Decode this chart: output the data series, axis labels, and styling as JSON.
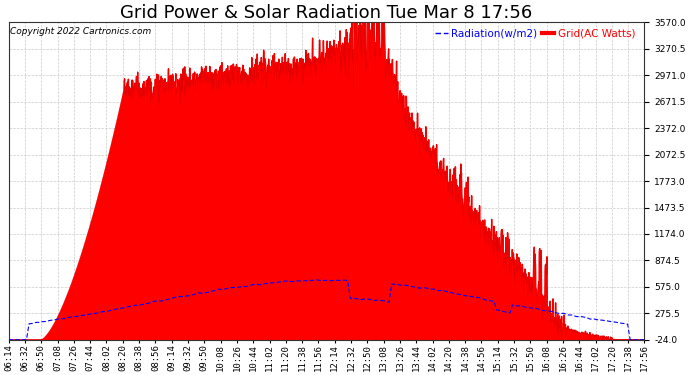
{
  "title": "Grid Power & Solar Radiation Tue Mar 8 17:56",
  "copyright": "Copyright 2022 Cartronics.com",
  "legend_radiation": "Radiation(w/m2)",
  "legend_grid": "Grid(AC Watts)",
  "grid_color": "#aaaaaa",
  "y_ticks": [
    -24.0,
    275.5,
    575.0,
    874.5,
    1174.0,
    1473.5,
    1773.0,
    2072.5,
    2372.0,
    2671.5,
    2971.0,
    3270.5,
    3570.0
  ],
  "ylim": [
    -24.0,
    3570.0
  ],
  "x_labels": [
    "06:14",
    "06:32",
    "06:50",
    "07:08",
    "07:26",
    "07:44",
    "08:02",
    "08:20",
    "08:38",
    "08:56",
    "09:14",
    "09:32",
    "09:50",
    "10:08",
    "10:26",
    "10:44",
    "11:02",
    "11:20",
    "11:38",
    "11:56",
    "12:14",
    "12:32",
    "12:50",
    "13:08",
    "13:26",
    "13:44",
    "14:02",
    "14:20",
    "14:38",
    "14:56",
    "15:14",
    "15:32",
    "15:50",
    "16:08",
    "16:26",
    "16:44",
    "17:02",
    "17:20",
    "17:38",
    "17:56"
  ],
  "grid_fill_color": "#ff0000",
  "radiation_color": "#0000ff",
  "radiation_line_style": "--",
  "title_fontsize": 13,
  "axis_fontsize": 6.5,
  "legend_fontsize": 7.5,
  "copyright_fontsize": 6.5,
  "fig_bg_color": "#ffffff",
  "plot_bg_color": "#ffffff"
}
